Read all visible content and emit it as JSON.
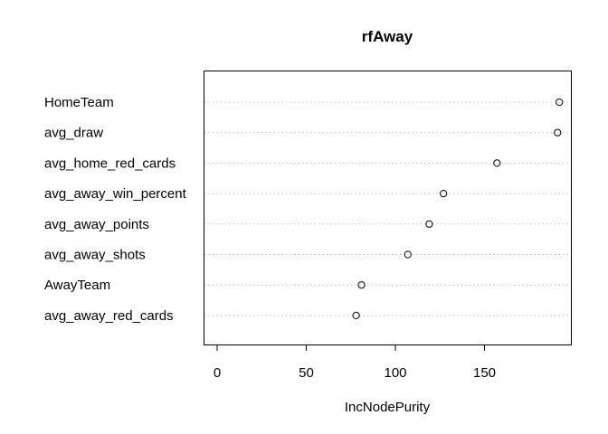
{
  "chart_data": {
    "type": "scatter",
    "title": "rfAway",
    "xlabel": "IncNodePurity",
    "ylabel": "",
    "xlim": [
      0,
      200
    ],
    "xticks": [
      0,
      50,
      100,
      150
    ],
    "grid": "dotted horizontal lines per variable",
    "categories": [
      "HomeTeam",
      "avg_draw",
      "avg_home_red_cards",
      "avg_away_win_percent",
      "avg_away_points",
      "avg_away_shots",
      "AwayTeam",
      "avg_away_red_cards"
    ],
    "values": [
      192,
      191,
      157,
      127,
      119,
      107,
      81,
      78
    ]
  }
}
